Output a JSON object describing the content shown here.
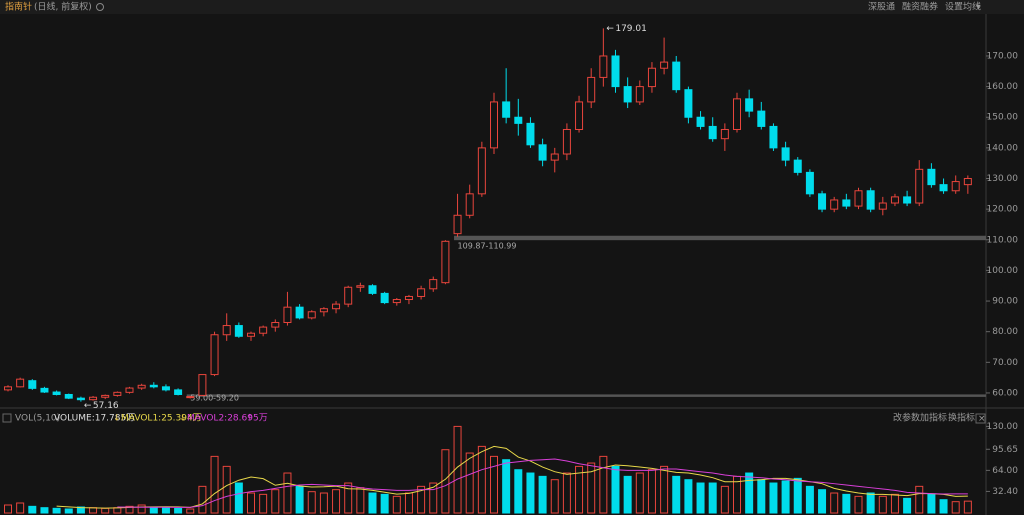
{
  "header": {
    "stock": "指南针",
    "mode": "(日线, 前复权)",
    "links": [
      "深股通",
      "融资融券",
      "设置均线"
    ]
  },
  "chart_data": [
    {
      "type": "candlestick",
      "ohlc": [
        [
          61,
          62.5,
          60.5,
          62
        ],
        [
          62,
          65,
          61.8,
          64.5
        ],
        [
          64,
          64.5,
          61,
          61.5
        ],
        [
          61.5,
          62,
          60,
          60.3
        ],
        [
          60.3,
          60.8,
          59.2,
          59.5
        ],
        [
          59.5,
          59.8,
          58,
          58.3
        ],
        [
          58.3,
          58.8,
          57.16,
          57.8
        ],
        [
          57.8,
          59,
          57.5,
          58.6
        ],
        [
          58.6,
          59.5,
          58,
          59.2
        ],
        [
          59.2,
          60.5,
          58.8,
          60.2
        ],
        [
          60.2,
          62,
          59.8,
          61.6
        ],
        [
          61.6,
          63,
          61,
          62.5
        ],
        [
          62.5,
          63.5,
          61.5,
          62
        ],
        [
          62,
          62.8,
          60.5,
          61
        ],
        [
          61,
          61.5,
          59.2,
          59.5
        ],
        [
          58.6,
          59,
          58.2,
          58.8
        ],
        [
          59.2,
          66,
          59,
          66
        ],
        [
          66,
          80,
          65.5,
          79
        ],
        [
          79,
          86,
          77,
          82
        ],
        [
          82,
          83,
          78,
          78.5
        ],
        [
          78.5,
          80,
          77,
          79.5
        ],
        [
          79.5,
          82,
          78.5,
          81.5
        ],
        [
          81.5,
          84,
          80,
          83
        ],
        [
          83,
          93,
          82,
          88
        ],
        [
          88,
          89,
          84,
          84.5
        ],
        [
          84.5,
          87,
          84,
          86.5
        ],
        [
          86.5,
          88,
          85,
          87.5
        ],
        [
          87.5,
          90,
          86,
          89
        ],
        [
          89,
          95,
          88,
          94.5
        ],
        [
          94.5,
          96,
          93,
          95
        ],
        [
          95,
          95.5,
          92,
          92.5
        ],
        [
          92.5,
          93,
          89,
          89.5
        ],
        [
          89.5,
          91,
          88.5,
          90.5
        ],
        [
          90.5,
          92,
          89,
          91.5
        ],
        [
          91.5,
          95,
          90.5,
          94
        ],
        [
          94,
          98,
          93,
          97
        ],
        [
          96,
          109.87,
          95.5,
          109.5
        ],
        [
          112,
          125,
          110.99,
          118
        ],
        [
          118,
          128,
          117,
          125
        ],
        [
          125,
          142,
          124,
          140
        ],
        [
          140,
          158,
          138,
          155
        ],
        [
          155,
          166,
          148,
          150
        ],
        [
          150,
          156,
          144,
          148
        ],
        [
          148,
          150,
          140,
          141
        ],
        [
          141,
          143,
          134,
          136
        ],
        [
          136,
          140,
          132,
          138
        ],
        [
          138,
          148,
          136,
          146
        ],
        [
          146,
          157,
          145,
          155
        ],
        [
          155,
          166,
          153,
          163
        ],
        [
          163,
          179.01,
          160,
          170
        ],
        [
          170,
          172,
          158,
          160
        ],
        [
          160,
          163,
          153,
          155
        ],
        [
          155,
          162,
          154,
          160
        ],
        [
          160,
          168,
          158,
          166
        ],
        [
          166,
          176,
          164,
          168
        ],
        [
          168,
          170,
          158,
          159
        ],
        [
          159,
          160,
          148,
          150
        ],
        [
          150,
          152,
          146,
          147
        ],
        [
          147,
          150,
          142,
          143
        ],
        [
          143,
          148,
          139,
          146
        ],
        [
          146,
          158,
          145,
          156
        ],
        [
          156,
          159,
          150,
          152
        ],
        [
          152,
          155,
          146,
          147
        ],
        [
          147,
          148,
          139,
          140
        ],
        [
          140,
          142,
          134,
          136
        ],
        [
          136,
          137,
          131,
          132
        ],
        [
          132,
          133,
          124,
          125
        ],
        [
          125,
          126,
          119,
          120
        ],
        [
          120,
          124,
          119,
          123
        ],
        [
          123,
          125,
          120,
          121
        ],
        [
          121,
          127,
          120,
          126
        ],
        [
          126,
          127,
          119,
          120
        ],
        [
          120,
          124,
          118,
          122
        ],
        [
          122,
          125,
          121,
          124
        ],
        [
          124,
          126,
          121,
          122
        ],
        [
          122,
          136,
          121,
          133
        ],
        [
          133,
          135,
          127,
          128
        ],
        [
          128,
          130,
          125,
          126
        ],
        [
          126,
          131,
          125,
          129
        ],
        [
          128,
          131,
          125,
          130
        ]
      ],
      "up_color": "#e8453c",
      "down_color": "#00dcec",
      "ylim": [
        57.7,
        183.7
      ],
      "yticks": [
        {
          "value": 60,
          "label": "60.00"
        },
        {
          "value": 70,
          "label": "70.00"
        },
        {
          "value": 80,
          "label": "80.00"
        },
        {
          "value": 90,
          "label": "90.00"
        },
        {
          "value": 100,
          "label": "100.00"
        },
        {
          "value": 110,
          "label": "110.00"
        },
        {
          "value": 120,
          "label": "120.00"
        },
        {
          "value": 130,
          "label": "130.00"
        },
        {
          "value": 140,
          "label": "140.00"
        },
        {
          "value": 150,
          "label": "150.00"
        },
        {
          "value": 160,
          "label": "160.00"
        },
        {
          "value": 170,
          "label": "170.00"
        }
      ],
      "annotations": [
        {
          "label": "109.87-110.99",
          "from": 109.87,
          "to": 110.99
        },
        {
          "label": "59.00-59.20",
          "from": 59.0,
          "to": 59.2
        }
      ]
    },
    {
      "type": "volume",
      "indicator": "VOL(5,10)",
      "series_name": "VOLUME:17.785万",
      "values": [
        12,
        15,
        10,
        8,
        7,
        6,
        9,
        8,
        7,
        8,
        10,
        12,
        9,
        8,
        7,
        6,
        40,
        85,
        70,
        45,
        30,
        28,
        35,
        60,
        40,
        32,
        30,
        35,
        45,
        38,
        30,
        28,
        25,
        30,
        40,
        45,
        95,
        130,
        90,
        100,
        85,
        80,
        65,
        60,
        55,
        50,
        60,
        70,
        75,
        85,
        70,
        55,
        60,
        65,
        70,
        55,
        50,
        45,
        45,
        40,
        55,
        60,
        50,
        45,
        48,
        52,
        40,
        35,
        30,
        28,
        25,
        30,
        25,
        28,
        22,
        40,
        28,
        20,
        17,
        17.785
      ],
      "series": [
        {
          "name": "MAVOL1:25.394万",
          "color": "#e8d84a",
          "values": [
            null,
            null,
            null,
            null,
            10.4,
            9.2,
            8,
            7.6,
            7.4,
            7.6,
            8.4,
            9,
            9.2,
            9.4,
            9.2,
            8.4,
            13.6,
            29.2,
            41.2,
            49.2,
            54,
            51.6,
            41.6,
            44.6,
            40.6,
            39,
            39.4,
            40.4,
            36.4,
            36,
            34,
            31.2,
            28.4,
            29.4,
            33.6,
            38.6,
            50.6,
            69,
            82,
            92,
            100,
            97,
            84,
            78,
            69,
            62,
            58,
            60,
            62,
            68,
            72,
            71,
            69,
            67,
            64,
            61,
            60,
            57,
            53,
            47,
            47,
            49,
            50,
            52,
            52,
            50,
            47,
            44,
            37,
            33,
            30,
            28,
            28,
            27,
            26,
            29,
            29,
            28,
            25,
            25.394
          ]
        },
        {
          "name": "MAVOL2:28.695万",
          "color": "#d83fd8",
          "values": [
            null,
            null,
            null,
            null,
            null,
            null,
            null,
            null,
            null,
            9,
            8.8,
            8.7,
            8.6,
            8.6,
            8.5,
            8.4,
            11,
            18.7,
            25,
            29,
            32,
            34,
            37,
            40,
            42,
            43,
            42,
            41,
            41,
            38,
            36,
            35,
            34,
            34,
            35,
            35,
            41,
            51,
            58,
            65,
            70,
            75,
            77,
            79,
            80,
            81,
            78,
            74,
            71,
            68,
            65,
            64,
            64,
            64,
            66,
            66,
            64,
            62,
            60,
            57,
            55,
            54,
            53,
            51,
            50,
            48,
            47,
            46,
            44,
            42,
            40,
            38,
            36,
            34,
            31,
            30,
            29,
            28.5,
            28.7,
            28.695
          ]
        }
      ],
      "ylim": [
        0,
        139.6
      ],
      "yticks": [
        {
          "value": 32.4,
          "label": "32.40"
        },
        {
          "value": 64,
          "label": "64.00"
        },
        {
          "value": 95.65,
          "label": "95.65"
        },
        {
          "value": 130,
          "label": "130.00"
        }
      ],
      "buttons": [
        "改参数",
        "加指标",
        "换指标"
      ]
    }
  ]
}
